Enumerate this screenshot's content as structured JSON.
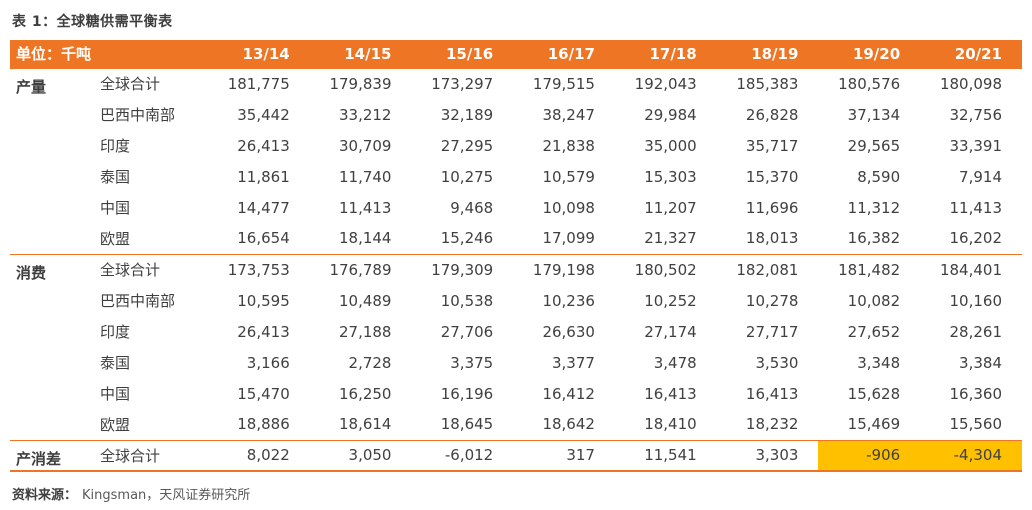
{
  "page": {
    "title": "表 1：全球糖供需平衡表",
    "source_label": "资料来源：",
    "source_text": "Kingsman，天风证券研究所"
  },
  "colors": {
    "accent_orange": "#ED7524",
    "header_text": "#FFFFFF",
    "highlight_yellow": "#FFC000",
    "title_text": "#3F3F3F",
    "body_text": "#404040",
    "source_text": "#595959"
  },
  "table": {
    "unit_label": "单位：千吨",
    "columns": [
      "13/14",
      "14/15",
      "15/16",
      "16/17",
      "17/18",
      "18/19",
      "19/20",
      "20/21"
    ],
    "sections": [
      {
        "name": "产量",
        "rows": [
          {
            "region": "全球合计",
            "values": [
              "181,775",
              "179,839",
              "173,297",
              "179,515",
              "192,043",
              "185,383",
              "180,576",
              "180,098"
            ]
          },
          {
            "region": "巴西中南部",
            "values": [
              "35,442",
              "33,212",
              "32,189",
              "38,247",
              "29,984",
              "26,828",
              "37,134",
              "32,756"
            ]
          },
          {
            "region": "印度",
            "values": [
              "26,413",
              "30,709",
              "27,295",
              "21,838",
              "35,000",
              "35,717",
              "29,565",
              "33,391"
            ]
          },
          {
            "region": "泰国",
            "values": [
              "11,861",
              "11,740",
              "10,275",
              "10,579",
              "15,303",
              "15,370",
              "8,590",
              "7,914"
            ]
          },
          {
            "region": "中国",
            "values": [
              "14,477",
              "11,413",
              "9,468",
              "10,098",
              "11,207",
              "11,696",
              "11,312",
              "11,413"
            ]
          },
          {
            "region": "欧盟",
            "values": [
              "16,654",
              "18,144",
              "15,246",
              "17,099",
              "21,327",
              "18,013",
              "16,382",
              "16,202"
            ]
          }
        ]
      },
      {
        "name": "消费",
        "rows": [
          {
            "region": "全球合计",
            "values": [
              "173,753",
              "176,789",
              "179,309",
              "179,198",
              "180,502",
              "182,081",
              "181,482",
              "184,401"
            ]
          },
          {
            "region": "巴西中南部",
            "values": [
              "10,595",
              "10,489",
              "10,538",
              "10,236",
              "10,252",
              "10,278",
              "10,082",
              "10,160"
            ]
          },
          {
            "region": "印度",
            "values": [
              "26,413",
              "27,188",
              "27,706",
              "26,630",
              "27,174",
              "27,717",
              "27,652",
              "28,261"
            ]
          },
          {
            "region": "泰国",
            "values": [
              "3,166",
              "2,728",
              "3,375",
              "3,377",
              "3,478",
              "3,530",
              "3,348",
              "3,384"
            ]
          },
          {
            "region": "中国",
            "values": [
              "15,470",
              "16,250",
              "16,196",
              "16,412",
              "16,413",
              "16,413",
              "15,628",
              "16,360"
            ]
          },
          {
            "region": "欧盟",
            "values": [
              "18,886",
              "18,614",
              "18,645",
              "18,642",
              "18,410",
              "18,232",
              "15,469",
              "15,560"
            ]
          }
        ]
      },
      {
        "name": "产消差",
        "rows": [
          {
            "region": "全球合计",
            "values": [
              "8,022",
              "3,050",
              "-6,012",
              "317",
              "11,541",
              "3,303",
              "-906",
              "-4,304"
            ],
            "highlight": [
              6,
              7
            ]
          }
        ]
      }
    ]
  }
}
